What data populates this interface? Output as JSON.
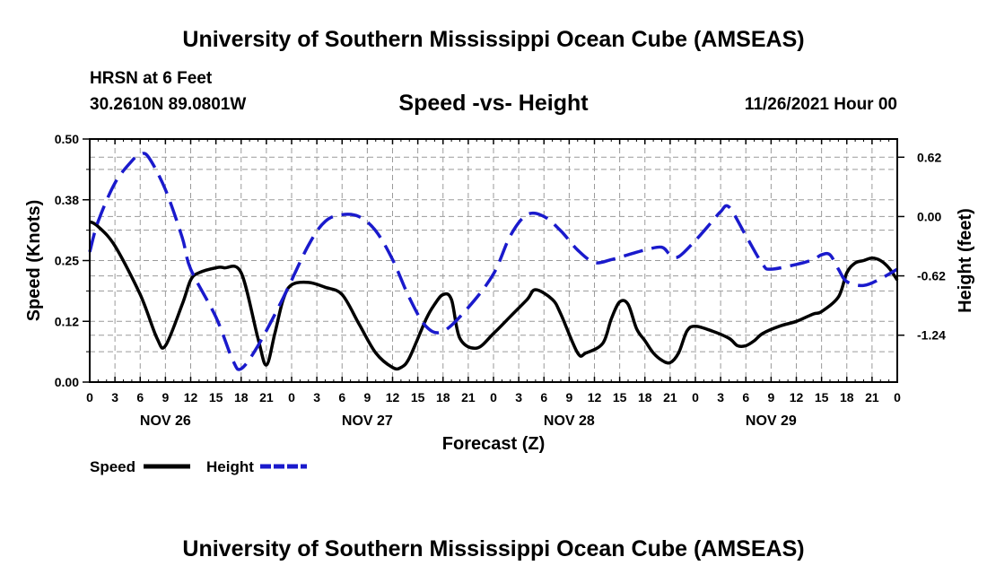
{
  "header": {
    "title": "University of Southern Mississippi Ocean Cube (AMSEAS)",
    "station": "HRSN at 6 Feet",
    "coords": "30.2610N  89.0801W",
    "subtitle": "Speed -vs- Height",
    "datetime": "11/26/2021 Hour 00"
  },
  "footer": {
    "title": "University of Southern Mississippi Ocean Cube (AMSEAS)"
  },
  "chart_data": {
    "type": "line",
    "title": "Speed -vs- Height",
    "xlabel": "Forecast (Z)",
    "ylabel": "Speed (Knots)",
    "y2label": "Height (feet)",
    "xlim": [
      0,
      96
    ],
    "ylim": [
      0,
      0.5
    ],
    "y2lim": [
      -1.73,
      0.81
    ],
    "grid": true,
    "x_ticks": [
      {
        "x": 0,
        "label": "0"
      },
      {
        "x": 3,
        "label": "3"
      },
      {
        "x": 6,
        "label": "6"
      },
      {
        "x": 9,
        "label": "9"
      },
      {
        "x": 12,
        "label": "12"
      },
      {
        "x": 15,
        "label": "15"
      },
      {
        "x": 18,
        "label": "18"
      },
      {
        "x": 21,
        "label": "21"
      },
      {
        "x": 24,
        "label": "0"
      },
      {
        "x": 27,
        "label": "3"
      },
      {
        "x": 30,
        "label": "6"
      },
      {
        "x": 33,
        "label": "9"
      },
      {
        "x": 36,
        "label": "12"
      },
      {
        "x": 39,
        "label": "15"
      },
      {
        "x": 42,
        "label": "18"
      },
      {
        "x": 45,
        "label": "21"
      },
      {
        "x": 48,
        "label": "0"
      },
      {
        "x": 51,
        "label": "3"
      },
      {
        "x": 54,
        "label": "6"
      },
      {
        "x": 57,
        "label": "9"
      },
      {
        "x": 60,
        "label": "12"
      },
      {
        "x": 63,
        "label": "15"
      },
      {
        "x": 66,
        "label": "18"
      },
      {
        "x": 69,
        "label": "21"
      },
      {
        "x": 72,
        "label": "0"
      },
      {
        "x": 75,
        "label": "3"
      },
      {
        "x": 78,
        "label": "6"
      },
      {
        "x": 81,
        "label": "9"
      },
      {
        "x": 84,
        "label": "12"
      },
      {
        "x": 87,
        "label": "15"
      },
      {
        "x": 90,
        "label": "18"
      },
      {
        "x": 93,
        "label": "21"
      },
      {
        "x": 96,
        "label": "0"
      }
    ],
    "date_labels": [
      {
        "x": 9,
        "label": "NOV 26"
      },
      {
        "x": 33,
        "label": "NOV 27"
      },
      {
        "x": 57,
        "label": "NOV 28"
      },
      {
        "x": 81,
        "label": "NOV 29"
      }
    ],
    "y_ticks": [
      {
        "value": 0.0,
        "label": "0.00"
      },
      {
        "value": 0.125,
        "label": "0.12"
      },
      {
        "value": 0.25,
        "label": "0.25"
      },
      {
        "value": 0.375,
        "label": "0.38"
      },
      {
        "value": 0.5,
        "label": "0.50"
      }
    ],
    "y2_ticks": [
      {
        "value": 0.62,
        "label": "0.62"
      },
      {
        "value": 0.0,
        "label": "0.00"
      },
      {
        "value": -0.62,
        "label": "-0.62"
      },
      {
        "value": -1.24,
        "label": "-1.24"
      }
    ],
    "series": [
      {
        "name": "Speed",
        "axis": "left",
        "color": "#000000",
        "dash": "solid",
        "x": [
          0,
          1,
          3,
          6,
          8,
          9,
          11,
          12,
          13,
          15,
          16,
          18,
          20,
          21,
          22,
          23,
          24,
          26,
          28,
          30,
          32,
          34,
          36,
          37,
          38,
          40,
          41,
          42,
          43,
          44,
          46,
          48,
          50,
          52,
          53,
          55,
          56,
          58,
          59,
          61,
          62,
          63,
          64,
          65,
          66,
          67,
          68,
          69,
          70,
          71,
          72,
          74,
          76,
          77,
          78,
          79,
          80,
          82,
          84,
          86,
          87,
          89,
          90,
          91,
          92,
          93,
          94,
          95,
          96
        ],
        "y": [
          0.33,
          0.32,
          0.28,
          0.18,
          0.09,
          0.075,
          0.16,
          0.21,
          0.225,
          0.235,
          0.235,
          0.225,
          0.09,
          0.035,
          0.1,
          0.17,
          0.2,
          0.205,
          0.195,
          0.18,
          0.12,
          0.06,
          0.03,
          0.03,
          0.05,
          0.13,
          0.16,
          0.18,
          0.17,
          0.09,
          0.07,
          0.1,
          0.135,
          0.17,
          0.19,
          0.17,
          0.14,
          0.06,
          0.06,
          0.08,
          0.13,
          0.165,
          0.16,
          0.11,
          0.085,
          0.06,
          0.045,
          0.04,
          0.06,
          0.105,
          0.115,
          0.105,
          0.09,
          0.075,
          0.075,
          0.085,
          0.1,
          0.115,
          0.125,
          0.14,
          0.145,
          0.175,
          0.225,
          0.245,
          0.25,
          0.255,
          0.25,
          0.235,
          0.21
        ]
      },
      {
        "name": "Height",
        "axis": "right",
        "color": "#1a1acc",
        "dash": "dashed",
        "x": [
          0,
          1,
          3,
          5,
          6,
          7,
          9,
          11,
          12,
          15,
          17,
          18,
          20,
          23,
          26,
          28,
          30,
          32,
          34,
          36,
          38,
          40,
          42,
          45,
          48,
          50,
          52,
          54,
          56,
          58,
          60,
          62,
          64,
          66,
          68,
          69,
          70,
          72,
          74,
          75,
          76,
          78,
          80,
          81,
          84,
          86,
          87,
          88,
          89,
          90,
          92,
          94,
          96
        ],
        "y": [
          -0.37,
          -0.05,
          0.35,
          0.58,
          0.65,
          0.62,
          0.28,
          -0.22,
          -0.55,
          -1.05,
          -1.5,
          -1.59,
          -1.35,
          -0.85,
          -0.3,
          -0.05,
          0.02,
          0.0,
          -0.15,
          -0.45,
          -0.85,
          -1.15,
          -1.2,
          -0.95,
          -0.6,
          -0.2,
          0.02,
          0.0,
          -0.15,
          -0.35,
          -0.48,
          -0.45,
          -0.4,
          -0.35,
          -0.32,
          -0.4,
          -0.42,
          -0.25,
          -0.05,
          0.05,
          0.1,
          -0.2,
          -0.5,
          -0.55,
          -0.5,
          -0.45,
          -0.4,
          -0.4,
          -0.55,
          -0.68,
          -0.72,
          -0.65,
          -0.55
        ]
      }
    ],
    "legend": {
      "position": "bottom-left",
      "entries": [
        "Speed",
        "Height"
      ]
    }
  }
}
